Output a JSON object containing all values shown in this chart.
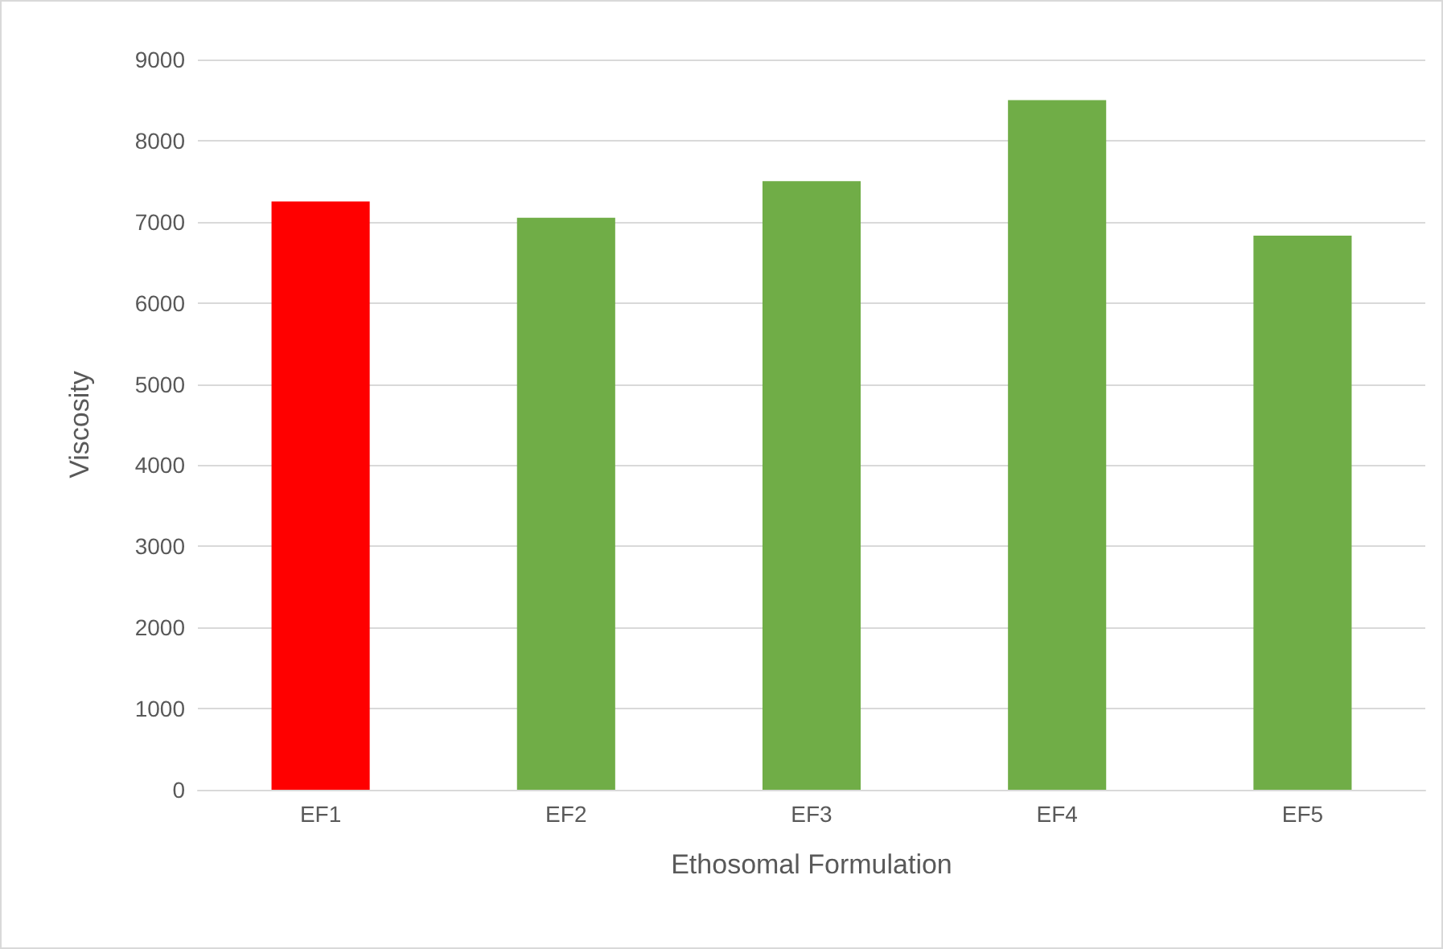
{
  "chart_data": {
    "type": "bar",
    "xlabel": "Ethosomal Formulation",
    "ylabel": "Viscosity",
    "categories": [
      "EF1",
      "EF2",
      "EF3",
      "EF4",
      "EF5"
    ],
    "values": [
      7250,
      7050,
      7500,
      8500,
      6830
    ],
    "colors": [
      "#ff0000",
      "#70ad47",
      "#70ad47",
      "#70ad47",
      "#70ad47"
    ],
    "ylim": [
      0,
      9000
    ],
    "yticks": [
      0,
      1000,
      2000,
      3000,
      4000,
      5000,
      6000,
      7000,
      8000,
      9000
    ],
    "grid": "y"
  }
}
